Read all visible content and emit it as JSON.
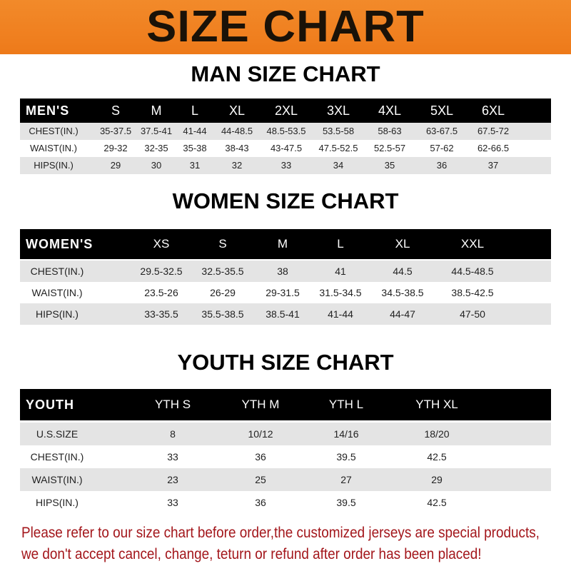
{
  "banner": {
    "title": "SIZE CHART",
    "color": "#f08020"
  },
  "tables": [
    {
      "title": "MAN SIZE CHART",
      "header": [
        "MEN'S",
        "S",
        "M",
        "L",
        "XL",
        "2XL",
        "3XL",
        "4XL",
        "5XL",
        "6XL"
      ],
      "rows": [
        [
          "CHEST(IN.)",
          "35-37.5",
          "37.5-41",
          "41-44",
          "44-48.5",
          "48.5-53.5",
          "53.5-58",
          "58-63",
          "63-67.5",
          "67.5-72"
        ],
        [
          "WAIST(IN.)",
          "29-32",
          "32-35",
          "35-38",
          "38-43",
          "43-47.5",
          "47.5-52.5",
          "52.5-57",
          "57-62",
          "62-66.5"
        ],
        [
          "HIPS(IN.)",
          "29",
          "30",
          "31",
          "32",
          "33",
          "34",
          "35",
          "36",
          "37"
        ]
      ]
    },
    {
      "title": "WOMEN SIZE CHART",
      "header": [
        "WOMEN'S",
        "XS",
        "S",
        "M",
        "L",
        "XL",
        "XXL"
      ],
      "rows": [
        [
          "CHEST(IN.)",
          "29.5-32.5",
          "32.5-35.5",
          "38",
          "41",
          "44.5",
          "44.5-48.5"
        ],
        [
          "WAIST(IN.)",
          "23.5-26",
          "26-29",
          "29-31.5",
          "31.5-34.5",
          "34.5-38.5",
          "38.5-42.5"
        ],
        [
          "HIPS(IN.)",
          "33-35.5",
          "35.5-38.5",
          "38.5-41",
          "41-44",
          "44-47",
          "47-50"
        ]
      ]
    },
    {
      "title": "YOUTH SIZE CHART",
      "header": [
        "YOUTH",
        "YTH S",
        "YTH M",
        "YTH L",
        "YTH XL"
      ],
      "rows": [
        [
          "U.S.SIZE",
          "8",
          "10/12",
          "14/16",
          "18/20"
        ],
        [
          "CHEST(IN.)",
          "33",
          "36",
          "39.5",
          "42.5"
        ],
        [
          "WAIST(IN.)",
          "23",
          "25",
          "27",
          "29"
        ],
        [
          "HIPS(IN.)",
          "33",
          "36",
          "39.5",
          "42.5"
        ]
      ]
    }
  ],
  "footer": {
    "line1": "Please refer to our size chart before order,the customized jerseys are special products,",
    "line2": "we don't accept cancel, change, teturn or refund after order has been placed!",
    "color": "#a3161b"
  }
}
